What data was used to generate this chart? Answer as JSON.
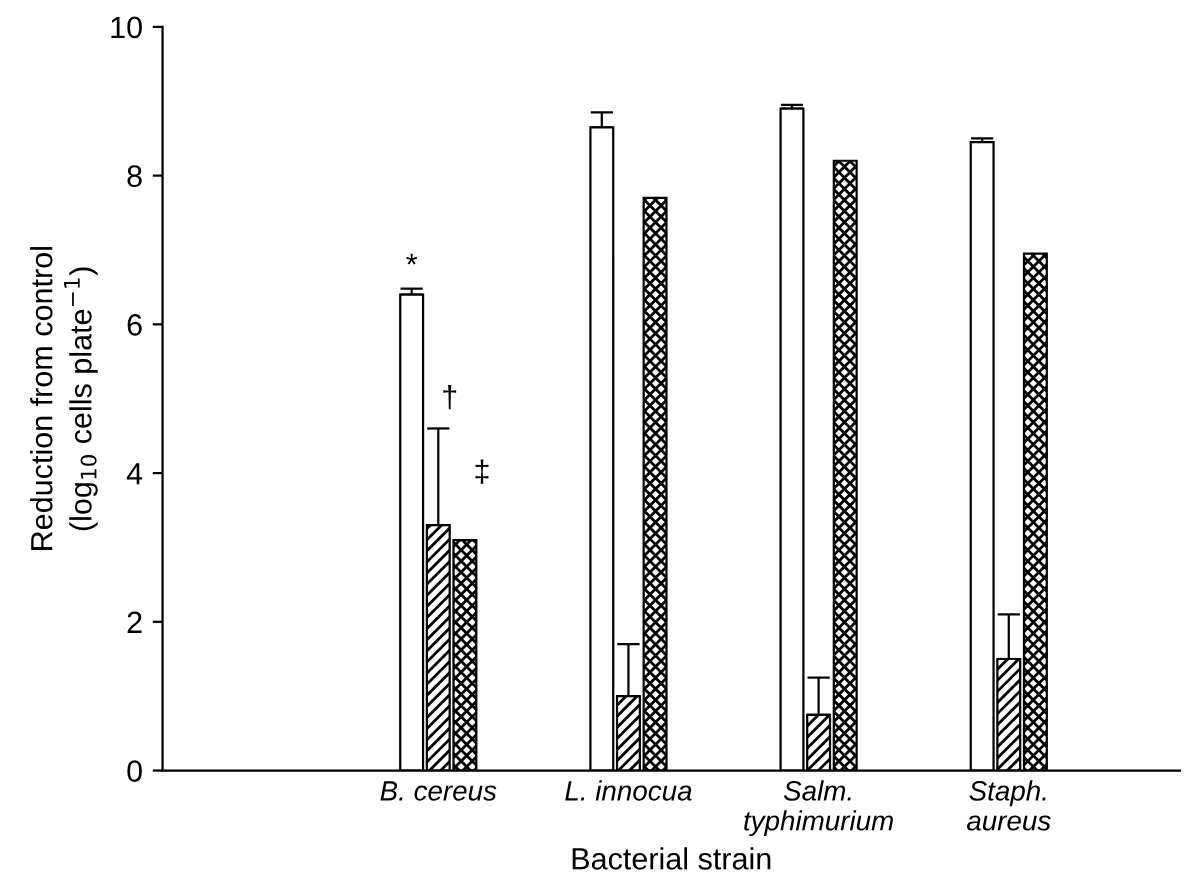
{
  "chart_data": {
    "type": "bar",
    "xlabel": "Bacterial strain",
    "ylabel": "Reduction from control\n(log$_{10}$ cells plate$^{−1}$)",
    "categories": [
      "B. cereus",
      "L. innocua",
      "Salm.\ntyphimurium",
      "Staph.\naureus"
    ],
    "series": [
      {
        "color": "#ffffff",
        "values": [
          6.4,
          8.65,
          8.9,
          8.45
        ],
        "errors": [
          [
            6.4,
            6.48
          ],
          [
            8.65,
            8.85
          ],
          [
            8.9,
            8.95
          ],
          [
            8.45,
            8.5
          ]
        ]
      },
      {
        "color": "#000000",
        "values": [
          3.3,
          1.0,
          0.75,
          1.5
        ],
        "errors": [
          [
            3.3,
            4.6
          ],
          [
            1.0,
            1.7
          ],
          [
            0.75,
            1.25
          ],
          [
            1.5,
            2.1
          ]
        ]
      },
      {
        "color": "#000000",
        "values": [
          3.1,
          7.7,
          8.2,
          6.95
        ]
      }
    ],
    "ylim": [
      0,
      10
    ],
    "yticks": [
      0,
      2,
      4,
      6,
      8,
      10
    ],
    "grid": false,
    "legend": false,
    "annotations": [
      "*",
      "†",
      "‡"
    ]
  }
}
